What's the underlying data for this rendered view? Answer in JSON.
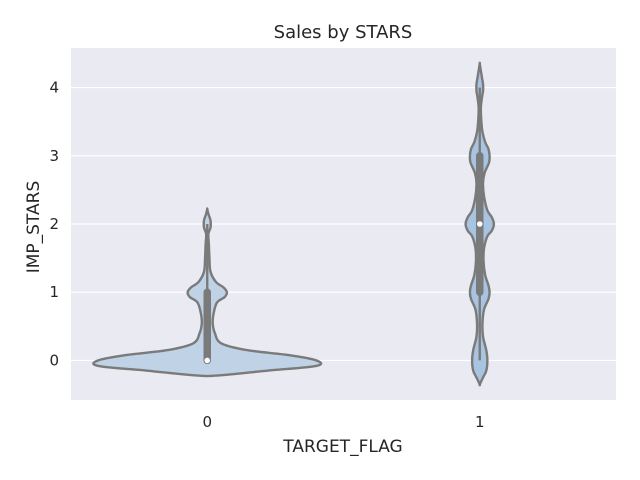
{
  "chart_data": {
    "type": "violin",
    "title": "Sales by STARS",
    "xlabel": "TARGET_FLAG",
    "ylabel": "IMP_STARS",
    "categories": [
      "0",
      "1"
    ],
    "yticks": [
      "0",
      "1",
      "2",
      "3",
      "4"
    ],
    "ylim": [
      -0.58,
      4.58
    ],
    "grid": true,
    "colors": {
      "background": "#eaeaf2",
      "grid": "#ffffff",
      "violin_0_fill": "#c0d3e6",
      "violin_1_fill": "#a8c4e0",
      "outline": "#7a7a7a",
      "median": "#ffffff"
    },
    "violins": [
      {
        "category": "0",
        "median": 0,
        "q1": 0,
        "q3": 1,
        "whisker_low": 0,
        "whisker_high": 2,
        "density_range": [
          -0.22,
          2.22
        ],
        "density": [
          [
            -0.22,
            0.1
          ],
          [
            -0.15,
            0.55
          ],
          [
            -0.08,
            1.0
          ],
          [
            0.0,
            1.0
          ],
          [
            0.08,
            0.74
          ],
          [
            0.15,
            0.37
          ],
          [
            0.25,
            0.13
          ],
          [
            0.4,
            0.07
          ],
          [
            0.55,
            0.05
          ],
          [
            0.7,
            0.06
          ],
          [
            0.85,
            0.09
          ],
          [
            0.93,
            0.16
          ],
          [
            1.0,
            0.18
          ],
          [
            1.07,
            0.15
          ],
          [
            1.15,
            0.08
          ],
          [
            1.3,
            0.03
          ],
          [
            1.5,
            0.02
          ],
          [
            1.7,
            0.015
          ],
          [
            1.85,
            0.01
          ],
          [
            1.95,
            0.03
          ],
          [
            2.05,
            0.03
          ],
          [
            2.15,
            0.01
          ],
          [
            2.22,
            0.0
          ]
        ]
      },
      {
        "category": "1",
        "median": 2,
        "q1": 1,
        "q3": 3,
        "whisker_low": 0,
        "whisker_high": 4,
        "density_range": [
          -0.35,
          4.35
        ],
        "density": [
          [
            -0.35,
            0.0
          ],
          [
            -0.25,
            0.03
          ],
          [
            -0.15,
            0.06
          ],
          [
            0.0,
            0.07
          ],
          [
            0.15,
            0.06
          ],
          [
            0.35,
            0.03
          ],
          [
            0.55,
            0.025
          ],
          [
            0.75,
            0.04
          ],
          [
            0.9,
            0.08
          ],
          [
            1.0,
            0.09
          ],
          [
            1.1,
            0.08
          ],
          [
            1.25,
            0.05
          ],
          [
            1.45,
            0.035
          ],
          [
            1.65,
            0.04
          ],
          [
            1.82,
            0.07
          ],
          [
            1.9,
            0.11
          ],
          [
            2.0,
            0.13
          ],
          [
            2.1,
            0.11
          ],
          [
            2.2,
            0.07
          ],
          [
            2.4,
            0.04
          ],
          [
            2.6,
            0.03
          ],
          [
            2.75,
            0.045
          ],
          [
            2.9,
            0.085
          ],
          [
            3.0,
            0.09
          ],
          [
            3.1,
            0.08
          ],
          [
            3.2,
            0.05
          ],
          [
            3.35,
            0.025
          ],
          [
            3.5,
            0.015
          ],
          [
            3.7,
            0.01
          ],
          [
            3.85,
            0.02
          ],
          [
            3.95,
            0.03
          ],
          [
            4.05,
            0.03
          ],
          [
            4.15,
            0.02
          ],
          [
            4.25,
            0.01
          ],
          [
            4.35,
            0.0
          ]
        ]
      }
    ]
  }
}
